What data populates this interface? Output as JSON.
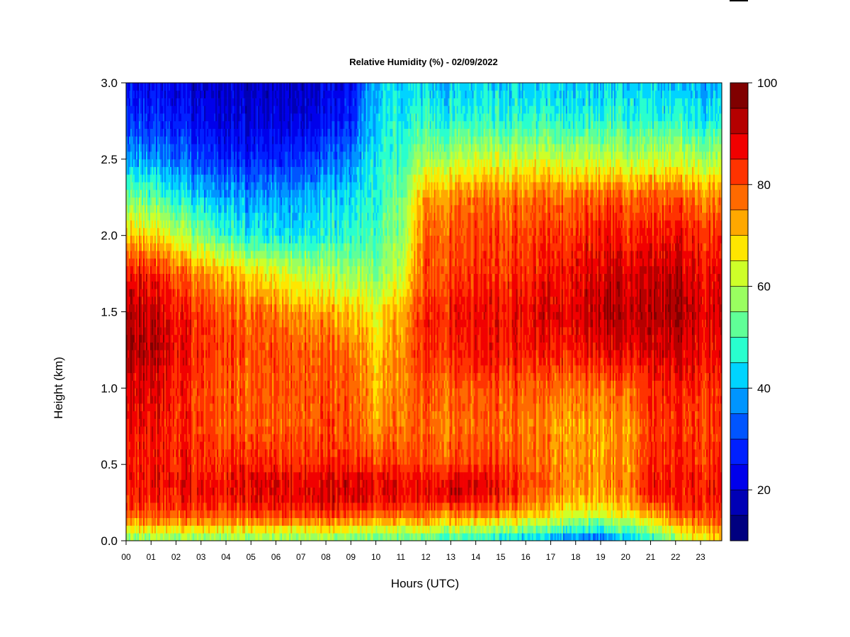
{
  "chart_data": {
    "type": "heatmap",
    "title": "Relative Humidity (%) - 02/09/2022",
    "xlabel": "Hours (UTC)",
    "ylabel": "Height (km)",
    "xlim": [
      0,
      23.85
    ],
    "ylim": [
      0,
      3.0
    ],
    "x_ticks": [
      {
        "value": 0,
        "label": "00"
      },
      {
        "value": 1,
        "label": "01"
      },
      {
        "value": 2,
        "label": "02"
      },
      {
        "value": 3,
        "label": "03"
      },
      {
        "value": 4,
        "label": "04"
      },
      {
        "value": 5,
        "label": "05"
      },
      {
        "value": 6,
        "label": "06"
      },
      {
        "value": 7,
        "label": "07"
      },
      {
        "value": 8,
        "label": "08"
      },
      {
        "value": 9,
        "label": "09"
      },
      {
        "value": 10,
        "label": "10"
      },
      {
        "value": 11,
        "label": "11"
      },
      {
        "value": 12,
        "label": "12"
      },
      {
        "value": 13,
        "label": "13"
      },
      {
        "value": 14,
        "label": "14"
      },
      {
        "value": 15,
        "label": "15"
      },
      {
        "value": 16,
        "label": "16"
      },
      {
        "value": 17,
        "label": "17"
      },
      {
        "value": 18,
        "label": "18"
      },
      {
        "value": 19,
        "label": "19"
      },
      {
        "value": 20,
        "label": "20"
      },
      {
        "value": 21,
        "label": "21"
      },
      {
        "value": 22,
        "label": "22"
      },
      {
        "value": 23,
        "label": "23"
      }
    ],
    "y_ticks": [
      {
        "value": 0.0,
        "label": "0.0"
      },
      {
        "value": 0.5,
        "label": "0.5"
      },
      {
        "value": 1.0,
        "label": "1.0"
      },
      {
        "value": 1.5,
        "label": "1.5"
      },
      {
        "value": 2.0,
        "label": "2.0"
      },
      {
        "value": 2.5,
        "label": "2.5"
      },
      {
        "value": 3.0,
        "label": "3.0"
      }
    ],
    "colorbar": {
      "range": [
        10,
        100
      ],
      "tick_values": [
        20,
        40,
        60,
        80,
        100
      ],
      "tick_labels": [
        "20",
        "40",
        "60",
        "80",
        "100"
      ],
      "levels": [
        {
          "from": 10,
          "to": 15,
          "color": "#000080"
        },
        {
          "from": 15,
          "to": 20,
          "color": "#0000B5"
        },
        {
          "from": 20,
          "to": 25,
          "color": "#0000EB"
        },
        {
          "from": 25,
          "to": 30,
          "color": "#0020FF"
        },
        {
          "from": 30,
          "to": 35,
          "color": "#0055FF"
        },
        {
          "from": 35,
          "to": 40,
          "color": "#0095FF"
        },
        {
          "from": 40,
          "to": 45,
          "color": "#00D4FF"
        },
        {
          "from": 45,
          "to": 50,
          "color": "#29FFCE"
        },
        {
          "from": 50,
          "to": 55,
          "color": "#60FF97"
        },
        {
          "from": 55,
          "to": 60,
          "color": "#9AFF60"
        },
        {
          "from": 60,
          "to": 65,
          "color": "#CEFF29"
        },
        {
          "from": 65,
          "to": 70,
          "color": "#FFE600"
        },
        {
          "from": 70,
          "to": 75,
          "color": "#FFA800"
        },
        {
          "from": 75,
          "to": 80,
          "color": "#FF6A00"
        },
        {
          "from": 80,
          "to": 85,
          "color": "#FF3300"
        },
        {
          "from": 85,
          "to": 90,
          "color": "#F10000"
        },
        {
          "from": 90,
          "to": 95,
          "color": "#B50000"
        },
        {
          "from": 95,
          "to": 100,
          "color": "#800000"
        }
      ]
    },
    "heights_km": [
      0.0,
      0.05,
      0.1,
      0.2,
      0.3,
      0.4,
      0.5,
      0.75,
      1.0,
      1.25,
      1.5,
      1.75,
      2.0,
      2.25,
      2.5,
      2.75,
      3.0
    ],
    "profiles": [
      {
        "hour": 0,
        "rh": [
          55,
          62,
          72,
          82,
          85,
          86,
          86,
          88,
          90,
          95,
          93,
          88,
          70,
          55,
          40,
          30,
          25
        ]
      },
      {
        "hour": 1,
        "rh": [
          55,
          62,
          72,
          82,
          86,
          87,
          86,
          87,
          89,
          93,
          91,
          86,
          68,
          52,
          38,
          28,
          24
        ]
      },
      {
        "hour": 2,
        "rh": [
          55,
          62,
          72,
          83,
          86,
          87,
          85,
          84,
          85,
          88,
          86,
          80,
          62,
          46,
          35,
          26,
          22
        ]
      },
      {
        "hour": 3,
        "rh": [
          55,
          62,
          72,
          83,
          87,
          87,
          84,
          82,
          82,
          84,
          82,
          75,
          55,
          42,
          30,
          24,
          20
        ]
      },
      {
        "hour": 4,
        "rh": [
          55,
          62,
          72,
          83,
          87,
          87,
          84,
          80,
          80,
          82,
          80,
          72,
          50,
          40,
          28,
          22,
          19
        ]
      },
      {
        "hour": 5,
        "rh": [
          55,
          62,
          72,
          84,
          88,
          88,
          84,
          79,
          79,
          80,
          78,
          68,
          45,
          38,
          27,
          21,
          18
        ]
      },
      {
        "hour": 6,
        "rh": [
          55,
          62,
          72,
          84,
          88,
          88,
          84,
          79,
          79,
          80,
          76,
          65,
          44,
          38,
          27,
          21,
          18
        ]
      },
      {
        "hour": 7,
        "rh": [
          55,
          62,
          72,
          85,
          89,
          89,
          84,
          80,
          80,
          80,
          74,
          62,
          45,
          40,
          30,
          22,
          19
        ]
      },
      {
        "hour": 8,
        "rh": [
          55,
          62,
          72,
          85,
          90,
          89,
          84,
          80,
          80,
          79,
          72,
          60,
          46,
          42,
          32,
          24,
          21
        ]
      },
      {
        "hour": 9,
        "rh": [
          55,
          60,
          70,
          85,
          90,
          90,
          85,
          80,
          80,
          78,
          70,
          58,
          48,
          44,
          36,
          28,
          24
        ]
      },
      {
        "hour": 10,
        "rh": [
          52,
          58,
          68,
          82,
          88,
          88,
          82,
          74,
          72,
          70,
          66,
          56,
          50,
          48,
          46,
          44,
          42
        ]
      },
      {
        "hour": 11,
        "rh": [
          52,
          58,
          68,
          82,
          88,
          88,
          82,
          77,
          76,
          75,
          72,
          62,
          56,
          54,
          50,
          46,
          43
        ]
      },
      {
        "hour": 12,
        "rh": [
          50,
          58,
          68,
          80,
          86,
          86,
          80,
          78,
          80,
          84,
          84,
          80,
          78,
          74,
          58,
          48,
          42
        ]
      },
      {
        "hour": 13,
        "rh": [
          48,
          56,
          66,
          80,
          92,
          90,
          82,
          78,
          80,
          85,
          86,
          82,
          80,
          76,
          60,
          48,
          42
        ]
      },
      {
        "hour": 14,
        "rh": [
          46,
          54,
          64,
          80,
          88,
          88,
          82,
          78,
          80,
          86,
          87,
          83,
          81,
          77,
          62,
          48,
          42
        ]
      },
      {
        "hour": 15,
        "rh": [
          44,
          52,
          62,
          78,
          86,
          86,
          82,
          78,
          80,
          86,
          87,
          83,
          81,
          77,
          62,
          48,
          42
        ]
      },
      {
        "hour": 16,
        "rh": [
          42,
          50,
          60,
          76,
          80,
          82,
          80,
          77,
          79,
          86,
          88,
          84,
          82,
          78,
          63,
          48,
          42
        ]
      },
      {
        "hour": 17,
        "rh": [
          38,
          46,
          56,
          70,
          76,
          78,
          76,
          74,
          78,
          86,
          89,
          86,
          83,
          78,
          62,
          48,
          42
        ]
      },
      {
        "hour": 18,
        "rh": [
          34,
          44,
          54,
          68,
          74,
          76,
          75,
          74,
          78,
          87,
          90,
          88,
          84,
          79,
          62,
          48,
          42
        ]
      },
      {
        "hour": 19,
        "rh": [
          30,
          42,
          52,
          66,
          72,
          75,
          74,
          73,
          78,
          88,
          93,
          90,
          86,
          80,
          62,
          48,
          42
        ]
      },
      {
        "hour": 20,
        "rh": [
          38,
          46,
          56,
          68,
          74,
          76,
          74,
          73,
          78,
          88,
          92,
          89,
          84,
          78,
          60,
          48,
          42
        ]
      },
      {
        "hour": 21,
        "rh": [
          46,
          54,
          62,
          76,
          86,
          86,
          84,
          82,
          84,
          90,
          93,
          91,
          86,
          80,
          62,
          48,
          42
        ]
      },
      {
        "hour": 22,
        "rh": [
          56,
          62,
          70,
          82,
          86,
          86,
          84,
          83,
          86,
          91,
          95,
          92,
          87,
          80,
          62,
          48,
          42
        ]
      },
      {
        "hour": 23,
        "rh": [
          66,
          70,
          76,
          84,
          86,
          86,
          84,
          82,
          84,
          88,
          90,
          88,
          84,
          76,
          60,
          46,
          40
        ]
      },
      {
        "hour": 23.85,
        "rh": [
          68,
          72,
          78,
          84,
          86,
          86,
          84,
          82,
          84,
          88,
          90,
          88,
          84,
          76,
          60,
          46,
          40
        ]
      }
    ]
  }
}
